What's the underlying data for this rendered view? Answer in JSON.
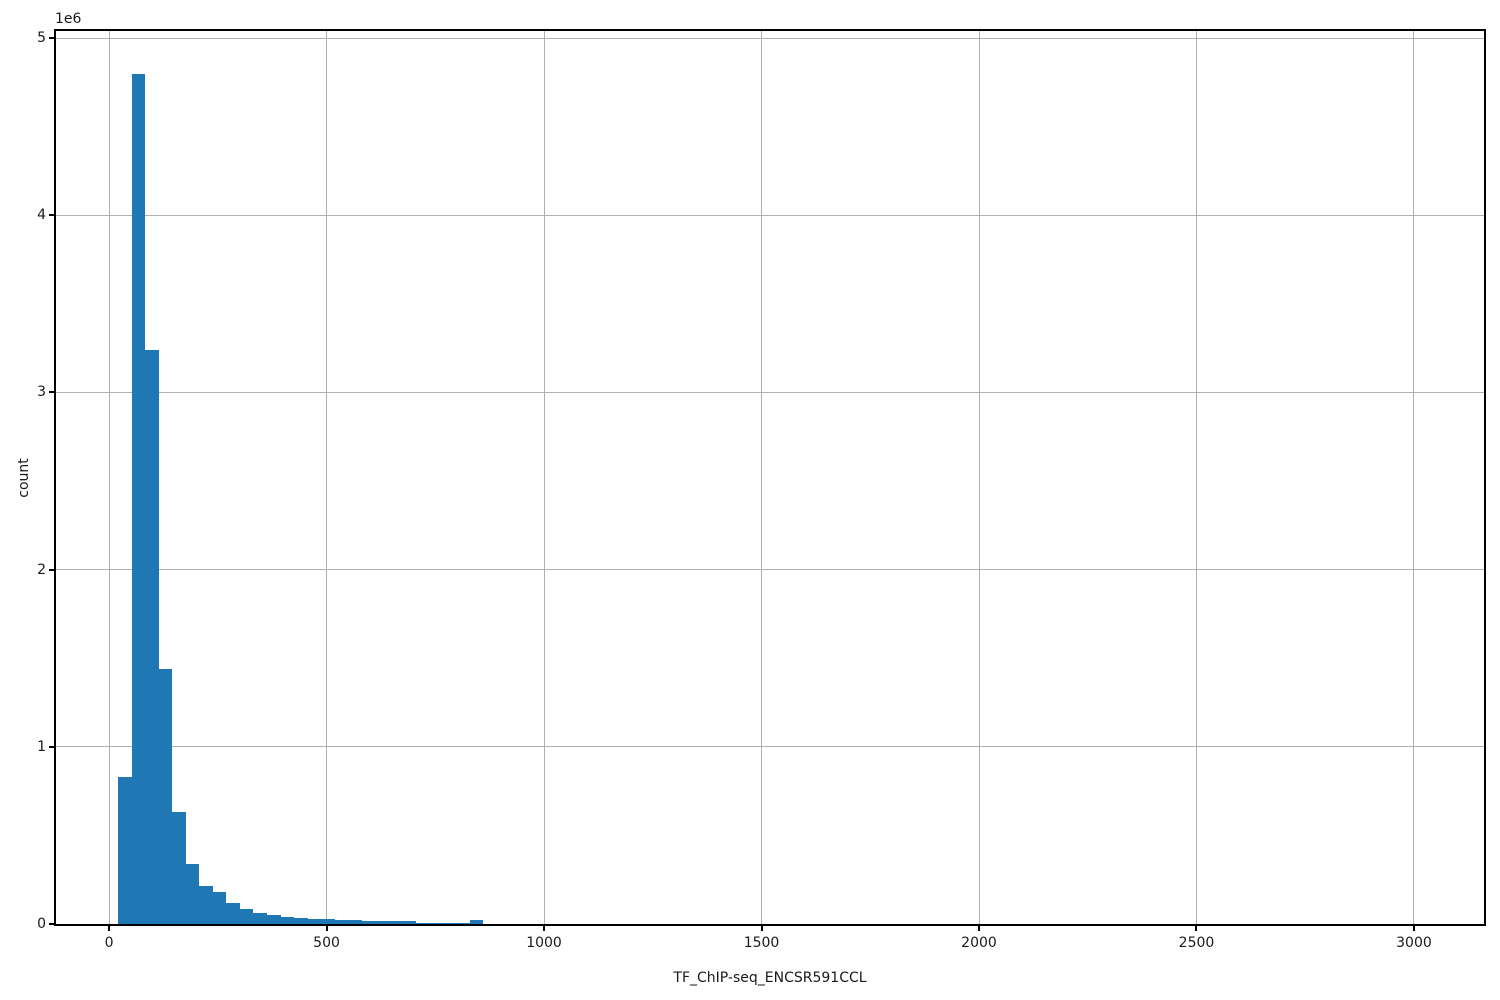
{
  "figure": {
    "kind": "matplotlib-histogram-figure"
  },
  "colors": {
    "bar": "#1f77b4",
    "grid": "#b0b0b0",
    "spine": "#000000",
    "background": "#ffffff",
    "text": "#1a1a1a"
  },
  "chart_data": {
    "type": "bar",
    "subtype": "histogram",
    "title": "",
    "xlabel": "TF_ChIP-seq_ENCSR591CCL",
    "ylabel": "count",
    "y_offset_label": "1e6",
    "grid": "on",
    "legend": "none",
    "xlim": [
      -122,
      3161
    ],
    "ylim": [
      0,
      5040000
    ],
    "x_ticks": [
      {
        "value": 0,
        "label": "0"
      },
      {
        "value": 500,
        "label": "500"
      },
      {
        "value": 1000,
        "label": "1000"
      },
      {
        "value": 1500,
        "label": "1500"
      },
      {
        "value": 2000,
        "label": "2000"
      },
      {
        "value": 2500,
        "label": "2500"
      },
      {
        "value": 3000,
        "label": "3000"
      }
    ],
    "y_ticks": [
      {
        "value": 0,
        "label": "0"
      },
      {
        "value": 1000000,
        "label": "1"
      },
      {
        "value": 2000000,
        "label": "2"
      },
      {
        "value": 3000000,
        "label": "3"
      },
      {
        "value": 4000000,
        "label": "4"
      },
      {
        "value": 5000000,
        "label": "5"
      }
    ],
    "bin_start": 21,
    "bin_width": 31.1,
    "counts": [
      830000,
      4800000,
      3240000,
      1440000,
      630000,
      340000,
      215000,
      180000,
      120000,
      83000,
      63000,
      49000,
      40000,
      34000,
      30000,
      27000,
      24000,
      21000,
      19000,
      17000,
      16000,
      16000,
      8000,
      6000,
      5000,
      4000,
      20000,
      2000
    ]
  }
}
